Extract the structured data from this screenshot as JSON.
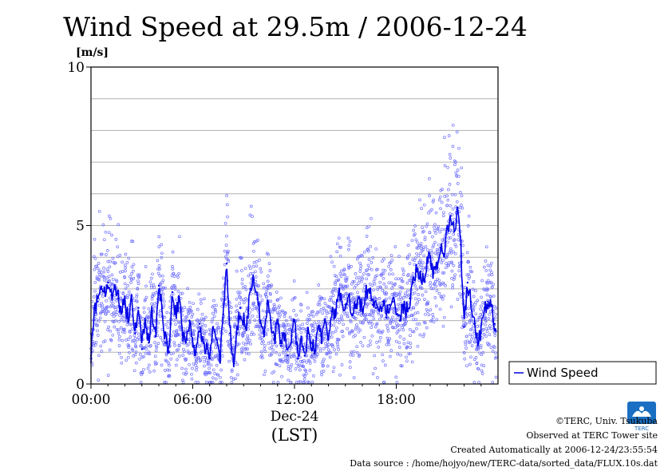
{
  "credits": {
    "copyright": "©TERC, Univ. Tsukuba",
    "site": "Observed at TERC Tower site",
    "created": "Created Automatically at 2006-12-24/23:55:54",
    "source": "Data source : /home/hojyo/new/TERC-data/sorted_data/FLUX.10s.dat"
  },
  "logo": {
    "text": "TERC",
    "color": "#1a6fc2"
  },
  "colors": {
    "line": "#0000e6",
    "points": "#7070ff",
    "grid": "#b0b0b0"
  },
  "chart_data": {
    "type": "line",
    "title": "Wind Speed at 29.5m / 2006-12-24",
    "ylabel": "[m/s]",
    "xlabel": "(LST)",
    "x_sublabel": "Dec-24",
    "ylim": [
      0,
      10
    ],
    "xlim": [
      0,
      24
    ],
    "y_ticks": [
      {
        "v": 0,
        "label": "0"
      },
      {
        "v": 5,
        "label": "5"
      },
      {
        "v": 10,
        "label": "10"
      }
    ],
    "y_grid": [
      1,
      2,
      3,
      4,
      5,
      6,
      7,
      8,
      9
    ],
    "x_ticks": [
      {
        "v": 0,
        "label": "00:00"
      },
      {
        "v": 6,
        "label": "06:00"
      },
      {
        "v": 12,
        "label": "12:00"
      },
      {
        "v": 18,
        "label": "18:00"
      }
    ],
    "grid": true,
    "legend_position": "right",
    "series": [
      {
        "name": "Wind Speed",
        "points_style": "scatter-of-10s-samples",
        "x": [
          0.0,
          0.2,
          0.4,
          0.6,
          0.8,
          1.0,
          1.2,
          1.4,
          1.6,
          1.8,
          2.0,
          2.2,
          2.4,
          2.6,
          2.8,
          3.0,
          3.2,
          3.4,
          3.6,
          3.8,
          4.0,
          4.2,
          4.4,
          4.6,
          4.8,
          5.0,
          5.2,
          5.4,
          5.6,
          5.8,
          6.0,
          6.2,
          6.4,
          6.6,
          6.8,
          7.0,
          7.2,
          7.4,
          7.6,
          7.8,
          8.0,
          8.2,
          8.4,
          8.6,
          8.8,
          9.0,
          9.2,
          9.4,
          9.6,
          9.8,
          10.0,
          10.2,
          10.4,
          10.6,
          10.8,
          11.0,
          11.2,
          11.4,
          11.6,
          11.8,
          12.0,
          12.2,
          12.4,
          12.6,
          12.8,
          13.0,
          13.2,
          13.4,
          13.6,
          13.8,
          14.0,
          14.2,
          14.4,
          14.6,
          14.8,
          15.0,
          15.2,
          15.4,
          15.6,
          15.8,
          16.0,
          16.2,
          16.4,
          16.6,
          16.8,
          17.0,
          17.2,
          17.4,
          17.6,
          17.8,
          18.0,
          18.2,
          18.4,
          18.6,
          18.8,
          19.0,
          19.2,
          19.4,
          19.6,
          19.8,
          20.0,
          20.2,
          20.4,
          20.6,
          20.8,
          21.0,
          21.2,
          21.4,
          21.6,
          21.8,
          22.0,
          22.2,
          22.4,
          22.6,
          22.8,
          23.0,
          23.2,
          23.4,
          23.6,
          23.8
        ],
        "values": [
          0.9,
          2.4,
          2.6,
          3.0,
          2.9,
          3.2,
          2.8,
          3.0,
          2.7,
          2.3,
          2.6,
          2.0,
          2.8,
          1.6,
          2.4,
          1.1,
          2.0,
          1.3,
          2.3,
          1.5,
          3.1,
          2.4,
          1.3,
          1.0,
          2.9,
          2.2,
          2.6,
          1.6,
          1.3,
          2.0,
          1.2,
          1.0,
          1.9,
          1.4,
          1.1,
          0.8,
          1.8,
          1.4,
          0.7,
          2.2,
          3.8,
          1.6,
          0.7,
          1.6,
          2.4,
          2.0,
          1.9,
          3.0,
          3.3,
          2.8,
          2.0,
          1.5,
          2.6,
          2.0,
          1.4,
          1.9,
          1.2,
          1.6,
          0.9,
          1.3,
          2.0,
          0.8,
          1.5,
          0.9,
          1.6,
          1.3,
          1.0,
          1.8,
          1.5,
          2.0,
          1.5,
          2.3,
          2.1,
          2.8,
          2.6,
          2.5,
          2.8,
          2.2,
          2.4,
          2.7,
          2.3,
          2.9,
          3.0,
          2.5,
          2.4,
          2.3,
          2.6,
          2.1,
          2.5,
          2.6,
          2.2,
          2.0,
          2.5,
          2.3,
          2.7,
          3.2,
          3.6,
          3.5,
          3.3,
          3.8,
          4.0,
          3.5,
          3.8,
          4.3,
          4.1,
          4.9,
          5.3,
          4.8,
          5.5,
          4.4,
          1.8,
          3.2,
          2.6,
          1.9,
          1.3,
          1.6,
          2.4,
          2.6,
          2.5,
          1.9
        ]
      }
    ]
  }
}
